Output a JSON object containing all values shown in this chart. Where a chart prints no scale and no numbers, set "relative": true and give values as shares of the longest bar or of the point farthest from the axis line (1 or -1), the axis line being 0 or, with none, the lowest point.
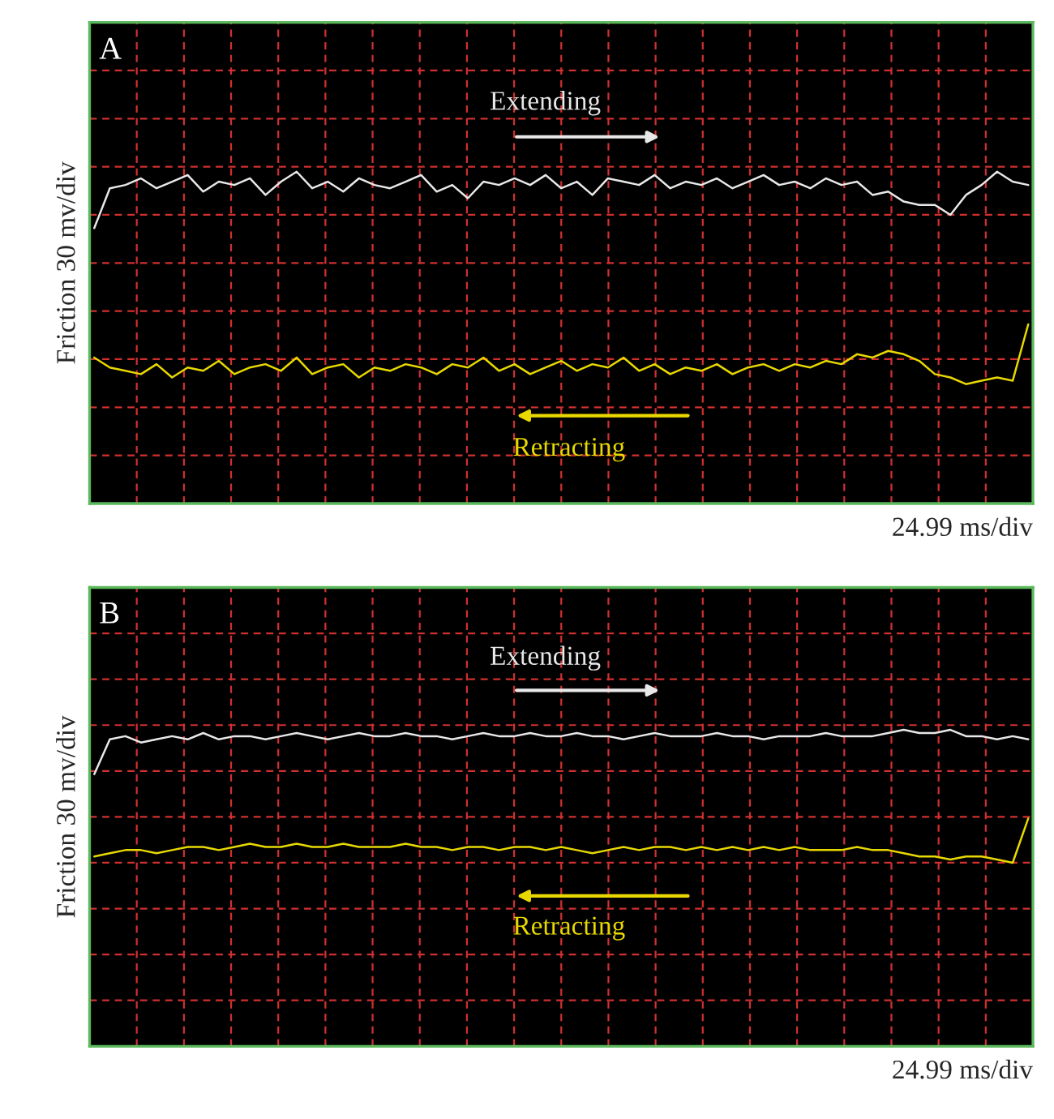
{
  "chart_data": [
    {
      "type": "line",
      "title": "A",
      "ylabel": "Friction 30 mv/div",
      "xlabel": "24.99 ms/div",
      "relative": true,
      "grid": true,
      "categories": [
        null,
        null,
        null,
        null,
        null,
        null,
        null,
        null,
        null,
        null,
        null,
        null,
        null,
        null,
        null,
        null,
        null,
        null,
        null,
        null,
        null,
        null,
        null,
        null,
        null,
        null,
        null,
        null,
        null,
        null,
        null,
        null,
        null,
        null,
        null,
        null,
        null,
        null,
        null,
        null,
        null,
        null,
        null,
        null,
        null,
        null,
        null,
        null,
        null,
        null,
        null,
        null,
        null,
        null,
        null,
        null,
        null,
        null,
        null,
        null,
        null
      ],
      "series": [
        {
          "name": "Extending",
          "color": "#e8e8e8",
          "values": [
            0.83,
            0.95,
            0.96,
            0.98,
            0.95,
            0.97,
            0.99,
            0.94,
            0.97,
            0.96,
            0.98,
            0.93,
            0.97,
            1.0,
            0.95,
            0.97,
            0.94,
            0.98,
            0.96,
            0.95,
            0.97,
            0.99,
            0.94,
            0.96,
            0.92,
            0.97,
            0.96,
            0.98,
            0.96,
            0.99,
            0.95,
            0.97,
            0.93,
            0.98,
            0.97,
            0.96,
            0.99,
            0.95,
            0.97,
            0.96,
            0.98,
            0.95,
            0.97,
            0.99,
            0.96,
            0.97,
            0.95,
            0.98,
            0.96,
            0.97,
            0.93,
            0.94,
            0.91,
            0.9,
            0.9,
            0.87,
            0.93,
            0.96,
            1.0,
            0.97,
            0.96
          ]
        },
        {
          "name": "Retracting",
          "color": "#e8d800",
          "values": [
            0.44,
            0.41,
            0.4,
            0.39,
            0.42,
            0.38,
            0.41,
            0.4,
            0.43,
            0.39,
            0.41,
            0.42,
            0.4,
            0.44,
            0.39,
            0.41,
            0.42,
            0.38,
            0.41,
            0.4,
            0.42,
            0.41,
            0.39,
            0.42,
            0.41,
            0.44,
            0.4,
            0.42,
            0.39,
            0.41,
            0.43,
            0.4,
            0.42,
            0.41,
            0.44,
            0.4,
            0.42,
            0.39,
            0.41,
            0.4,
            0.42,
            0.39,
            0.41,
            0.42,
            0.4,
            0.42,
            0.41,
            0.43,
            0.42,
            0.45,
            0.44,
            0.46,
            0.45,
            0.43,
            0.39,
            0.38,
            0.36,
            0.37,
            0.38,
            0.37,
            0.54
          ]
        }
      ]
    },
    {
      "type": "line",
      "title": "B",
      "ylabel": "Friction 30 mv/div",
      "xlabel": "24.99 ms/div",
      "relative": true,
      "grid": true,
      "categories": [
        null,
        null,
        null,
        null,
        null,
        null,
        null,
        null,
        null,
        null,
        null,
        null,
        null,
        null,
        null,
        null,
        null,
        null,
        null,
        null,
        null,
        null,
        null,
        null,
        null,
        null,
        null,
        null,
        null,
        null,
        null,
        null,
        null,
        null,
        null,
        null,
        null,
        null,
        null,
        null,
        null,
        null,
        null,
        null,
        null,
        null,
        null,
        null,
        null,
        null,
        null,
        null,
        null,
        null,
        null,
        null,
        null,
        null,
        null,
        null,
        null
      ],
      "series": [
        {
          "name": "Extending",
          "color": "#e8e8e8",
          "values": [
            0.86,
            0.97,
            0.98,
            0.96,
            0.97,
            0.98,
            0.97,
            0.99,
            0.97,
            0.98,
            0.98,
            0.97,
            0.98,
            0.99,
            0.98,
            0.97,
            0.98,
            0.99,
            0.98,
            0.98,
            0.99,
            0.98,
            0.98,
            0.97,
            0.98,
            0.99,
            0.98,
            0.98,
            0.99,
            0.98,
            0.98,
            0.99,
            0.98,
            0.98,
            0.97,
            0.98,
            0.99,
            0.98,
            0.98,
            0.98,
            0.99,
            0.98,
            0.98,
            0.97,
            0.98,
            0.98,
            0.98,
            0.99,
            0.98,
            0.98,
            0.98,
            0.99,
            1.0,
            0.99,
            0.99,
            1.0,
            0.98,
            0.98,
            0.97,
            0.98,
            0.97
          ]
        },
        {
          "name": "Retracting",
          "color": "#e8d800",
          "values": [
            0.6,
            0.61,
            0.62,
            0.62,
            0.61,
            0.62,
            0.63,
            0.63,
            0.62,
            0.63,
            0.64,
            0.63,
            0.63,
            0.64,
            0.63,
            0.63,
            0.64,
            0.63,
            0.63,
            0.63,
            0.64,
            0.63,
            0.63,
            0.62,
            0.63,
            0.63,
            0.62,
            0.63,
            0.63,
            0.62,
            0.63,
            0.62,
            0.61,
            0.62,
            0.63,
            0.62,
            0.63,
            0.63,
            0.62,
            0.63,
            0.62,
            0.63,
            0.62,
            0.63,
            0.62,
            0.63,
            0.62,
            0.62,
            0.62,
            0.63,
            0.62,
            0.62,
            0.61,
            0.6,
            0.6,
            0.59,
            0.6,
            0.6,
            0.59,
            0.58,
            0.72
          ]
        }
      ]
    }
  ]
}
